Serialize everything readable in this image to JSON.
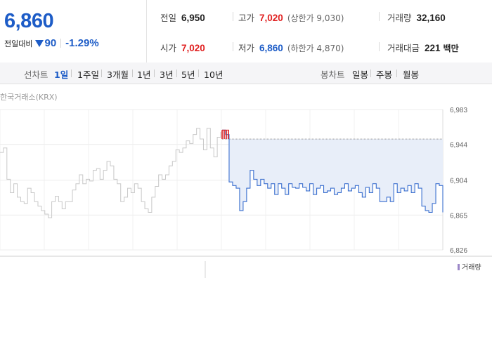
{
  "quote": {
    "price": "6,860",
    "change_label": "전일대비",
    "change_amount": "90",
    "change_rate": "-1.29%",
    "prev_close_label": "전일",
    "prev_close": "6,950",
    "open_label": "시가",
    "open": "7,020",
    "high_label": "고가",
    "high": "7,020",
    "upper_limit": "(상한가 9,030)",
    "low_label": "저가",
    "low": "6,860",
    "lower_limit": "(하한가 4,870)",
    "volume_label": "거래량",
    "volume": "32,160",
    "turnover_label": "거래대금",
    "turnover": "221",
    "turnover_unit": "백만"
  },
  "line_tabs": {
    "title": "선차트",
    "items": [
      "1일",
      "1주일",
      "3개월",
      "1년",
      "3년",
      "5년",
      "10년"
    ],
    "active": "1일"
  },
  "candle_tabs": {
    "title": "봉차트",
    "items": [
      "일봉",
      "주봉",
      "월봉"
    ]
  },
  "source_label": "한국거래소(KRX)",
  "volume_legend": "거래량",
  "colors": {
    "accent_blue": "#1d5cc7",
    "up_red": "#e02020",
    "prev_day_line": "#c8c8c8",
    "today_line": "#3a6fcf",
    "fill": "#e8eef9"
  },
  "chart_data": {
    "type": "line",
    "y_ticks": [
      "6,983",
      "6,944",
      "6,904",
      "6,865",
      "6,826"
    ],
    "ylim": [
      6826,
      6983
    ],
    "reference_price": 6950,
    "series": [
      {
        "key": "previous",
        "values": [
          6935,
          6940,
          6905,
          6890,
          6900,
          6885,
          6880,
          6878,
          6895,
          6890,
          6880,
          6875,
          6870,
          6866,
          6862,
          6880,
          6886,
          6880,
          6872,
          6880,
          6880,
          6893,
          6900,
          6910,
          6900,
          6905,
          6903,
          6915,
          6917,
          6905,
          6915,
          6925,
          6920,
          6905,
          6900,
          6880,
          6885,
          6895,
          6890,
          6900,
          6895,
          6880,
          6872,
          6868,
          6885,
          6897,
          6910,
          6905,
          6910,
          6920,
          6925,
          6938,
          6935,
          6940,
          6948,
          6945,
          6955,
          6962,
          6950,
          6938,
          6962,
          6940,
          6930,
          6952,
          6958
        ]
      },
      {
        "key": "today",
        "values": [
          6960,
          6955,
          6902,
          6898,
          6895,
          6870,
          6880,
          6895,
          6915,
          6905,
          6898,
          6905,
          6900,
          6895,
          6900,
          6888,
          6900,
          6895,
          6888,
          6900,
          6896,
          6895,
          6900,
          6896,
          6892,
          6900,
          6888,
          6895,
          6898,
          6890,
          6892,
          6895,
          6888,
          6890,
          6895,
          6900,
          6892,
          6895,
          6898,
          6890,
          6885,
          6896,
          6890,
          6900,
          6895,
          6880,
          6880,
          6885,
          6880,
          6900,
          6890,
          6895,
          6892,
          6898,
          6890,
          6900,
          6895,
          6875,
          6870,
          6868,
          6878,
          6900,
          6898,
          6868
        ]
      }
    ]
  }
}
